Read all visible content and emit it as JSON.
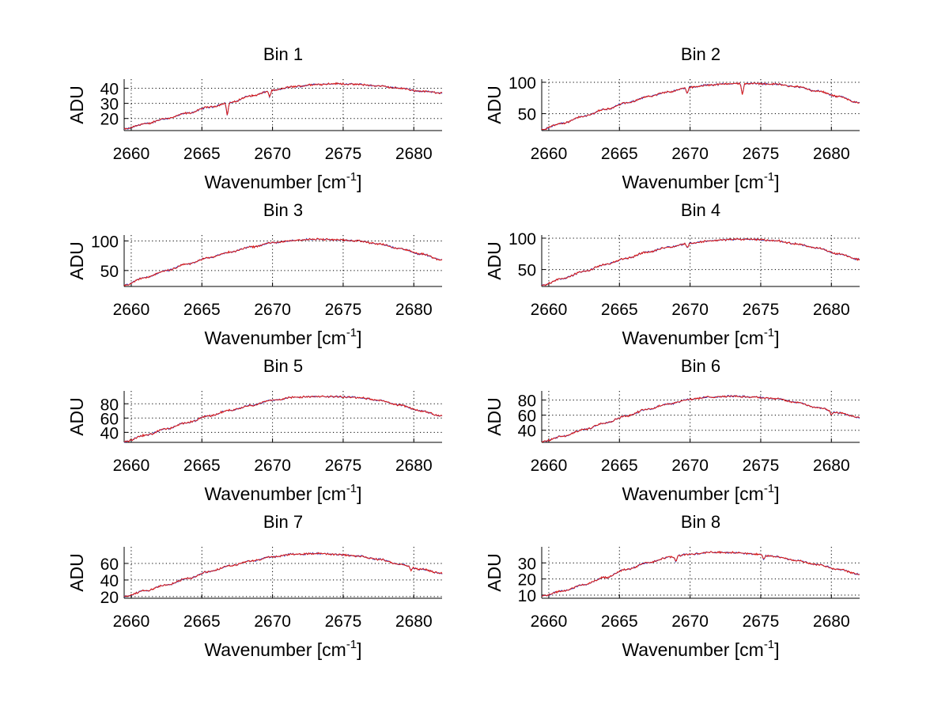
{
  "chart_data": [
    {
      "type": "line",
      "title": "Bin 1",
      "xlabel": "Wavenumber",
      "xunit_base": "cm",
      "xunit_sup": "-1",
      "ylabel": "ADU",
      "xlim": [
        2659.5,
        2682
      ],
      "ylim": [
        12,
        46
      ],
      "xticks": [
        2660,
        2665,
        2670,
        2675,
        2680
      ],
      "yticks": [
        20,
        30,
        40
      ],
      "series": [
        {
          "name": "blue",
          "color": "#1f3fd8"
        },
        {
          "name": "red",
          "color": "#e0180f"
        }
      ],
      "x": [
        2659.5,
        2661,
        2662.5,
        2664,
        2665.5,
        2667,
        2668.5,
        2670,
        2671.5,
        2673,
        2674.5,
        2676,
        2677.5,
        2679,
        2680.5,
        2682
      ],
      "y": [
        13,
        16.5,
        20,
        23.5,
        27.5,
        30.5,
        35,
        38.5,
        41,
        42.5,
        43,
        42.5,
        41.5,
        40,
        38,
        37
      ],
      "dips": [
        {
          "x": 2666.8,
          "depth": 8
        },
        {
          "x": 2669.8,
          "depth": 4
        }
      ]
    },
    {
      "type": "line",
      "title": "Bin 2",
      "xlabel": "Wavenumber",
      "xunit_base": "cm",
      "xunit_sup": "-1",
      "ylabel": "ADU",
      "xlim": [
        2659.5,
        2682
      ],
      "ylim": [
        23,
        105
      ],
      "xticks": [
        2660,
        2665,
        2670,
        2675,
        2680
      ],
      "yticks": [
        50,
        100
      ],
      "series": [
        {
          "name": "blue",
          "color": "#1f3fd8"
        },
        {
          "name": "red",
          "color": "#e0180f"
        }
      ],
      "x": [
        2659.5,
        2661,
        2662.5,
        2664,
        2665.5,
        2667,
        2668.5,
        2670,
        2671.5,
        2673,
        2674.5,
        2676,
        2677.5,
        2679,
        2680.5,
        2682
      ],
      "y": [
        25,
        35,
        46,
        57,
        67,
        77,
        85,
        92,
        96,
        98,
        98,
        97,
        93,
        86,
        77,
        67
      ],
      "dips": [
        {
          "x": 2669.8,
          "depth": 10
        },
        {
          "x": 2673.7,
          "depth": 18
        }
      ]
    },
    {
      "type": "line",
      "title": "Bin 3",
      "xlabel": "Wavenumber",
      "xunit_base": "cm",
      "xunit_sup": "-1",
      "ylabel": "ADU",
      "xlim": [
        2659.5,
        2682
      ],
      "ylim": [
        23,
        110
      ],
      "xticks": [
        2660,
        2665,
        2670,
        2675,
        2680
      ],
      "yticks": [
        50,
        100
      ],
      "series": [
        {
          "name": "blue",
          "color": "#1f3fd8"
        },
        {
          "name": "red",
          "color": "#e0180f"
        }
      ],
      "x": [
        2659.5,
        2661,
        2662.5,
        2664,
        2665.5,
        2667,
        2668.5,
        2670,
        2671.5,
        2673,
        2674.5,
        2676,
        2677.5,
        2679,
        2680.5,
        2682
      ],
      "y": [
        25,
        38,
        50,
        61,
        72,
        81,
        90,
        97,
        101,
        103,
        102,
        100,
        95,
        87,
        78,
        68
      ],
      "dips": []
    },
    {
      "type": "line",
      "title": "Bin 4",
      "xlabel": "Wavenumber",
      "xunit_base": "cm",
      "xunit_sup": "-1",
      "ylabel": "ADU",
      "xlim": [
        2659.5,
        2682
      ],
      "ylim": [
        23,
        105
      ],
      "xticks": [
        2660,
        2665,
        2670,
        2675,
        2680
      ],
      "yticks": [
        50,
        100
      ],
      "series": [
        {
          "name": "blue",
          "color": "#1f3fd8"
        },
        {
          "name": "red",
          "color": "#e0180f"
        }
      ],
      "x": [
        2659.5,
        2661,
        2662.5,
        2664,
        2665.5,
        2667,
        2668.5,
        2670,
        2671.5,
        2673,
        2674.5,
        2676,
        2677.5,
        2679,
        2680.5,
        2682
      ],
      "y": [
        25,
        36,
        47,
        58,
        68,
        78,
        86,
        92,
        96,
        98,
        98,
        96,
        91,
        84,
        75,
        66
      ],
      "dips": [
        {
          "x": 2669.8,
          "depth": 7
        }
      ]
    },
    {
      "type": "line",
      "title": "Bin 5",
      "xlabel": "Wavenumber",
      "xunit_base": "cm",
      "xunit_sup": "-1",
      "ylabel": "ADU",
      "xlim": [
        2659.5,
        2682
      ],
      "ylim": [
        26,
        98
      ],
      "xticks": [
        2660,
        2665,
        2670,
        2675,
        2680
      ],
      "yticks": [
        40,
        60,
        80
      ],
      "series": [
        {
          "name": "blue",
          "color": "#1f3fd8"
        },
        {
          "name": "red",
          "color": "#e0180f"
        }
      ],
      "x": [
        2659.5,
        2661,
        2662.5,
        2664,
        2665.5,
        2667,
        2668.5,
        2670,
        2671.5,
        2673,
        2674.5,
        2676,
        2677.5,
        2679,
        2680.5,
        2682
      ],
      "y": [
        27,
        36,
        45,
        54,
        63,
        71,
        78,
        85,
        89,
        90,
        90,
        89,
        85,
        78,
        70,
        63
      ],
      "dips": []
    },
    {
      "type": "line",
      "title": "Bin 6",
      "xlabel": "Wavenumber",
      "xunit_base": "cm",
      "xunit_sup": "-1",
      "ylabel": "ADU",
      "xlim": [
        2659.5,
        2682
      ],
      "ylim": [
        24,
        92
      ],
      "xticks": [
        2660,
        2665,
        2670,
        2675,
        2680
      ],
      "yticks": [
        40,
        60,
        80
      ],
      "series": [
        {
          "name": "blue",
          "color": "#1f3fd8"
        },
        {
          "name": "red",
          "color": "#e0180f"
        }
      ],
      "x": [
        2659.5,
        2661,
        2662.5,
        2664,
        2665.5,
        2667,
        2668.5,
        2670,
        2671.5,
        2673,
        2674.5,
        2676,
        2677.5,
        2679,
        2680.5,
        2682
      ],
      "y": [
        25,
        32,
        41,
        50,
        59,
        68,
        75,
        81,
        84,
        85,
        84,
        82,
        77,
        70,
        63,
        57
      ],
      "dips": [
        {
          "x": 2680.0,
          "depth": 5
        }
      ]
    },
    {
      "type": "line",
      "title": "Bin 7",
      "xlabel": "Wavenumber",
      "xunit_base": "cm",
      "xunit_sup": "-1",
      "ylabel": "ADU",
      "xlim": [
        2659.5,
        2682
      ],
      "ylim": [
        18,
        80
      ],
      "xticks": [
        2660,
        2665,
        2670,
        2675,
        2680
      ],
      "yticks": [
        20,
        40,
        60
      ],
      "series": [
        {
          "name": "blue",
          "color": "#1f3fd8"
        },
        {
          "name": "red",
          "color": "#e0180f"
        }
      ],
      "x": [
        2659.5,
        2661,
        2662.5,
        2664,
        2665.5,
        2667,
        2668.5,
        2670,
        2671.5,
        2673,
        2674.5,
        2676,
        2677.5,
        2679,
        2680.5,
        2682
      ],
      "y": [
        20,
        27,
        34,
        42,
        50,
        57,
        63,
        68,
        71,
        72,
        71,
        69,
        65,
        59,
        53,
        48
      ],
      "dips": [
        {
          "x": 2679.8,
          "depth": 4
        }
      ]
    },
    {
      "type": "line",
      "title": "Bin 8",
      "xlabel": "Wavenumber",
      "xunit_base": "cm",
      "xunit_sup": "-1",
      "ylabel": "ADU",
      "xlim": [
        2659.5,
        2682
      ],
      "ylim": [
        8,
        40
      ],
      "xticks": [
        2660,
        2665,
        2670,
        2675,
        2680
      ],
      "yticks": [
        10,
        20,
        30
      ],
      "series": [
        {
          "name": "blue",
          "color": "#1f3fd8"
        },
        {
          "name": "red",
          "color": "#e0180f"
        }
      ],
      "x": [
        2659.5,
        2661,
        2662.5,
        2664,
        2665.5,
        2667,
        2668.5,
        2670,
        2671.5,
        2673,
        2674.5,
        2676,
        2677.5,
        2679,
        2680.5,
        2682
      ],
      "y": [
        9.5,
        12.5,
        16.5,
        21,
        26,
        30,
        33.5,
        35.5,
        36.5,
        36.5,
        35.5,
        34,
        31.5,
        29,
        26,
        23
      ],
      "dips": [
        {
          "x": 2669.0,
          "depth": 3
        },
        {
          "x": 2675.2,
          "depth": 2.5
        }
      ]
    }
  ]
}
